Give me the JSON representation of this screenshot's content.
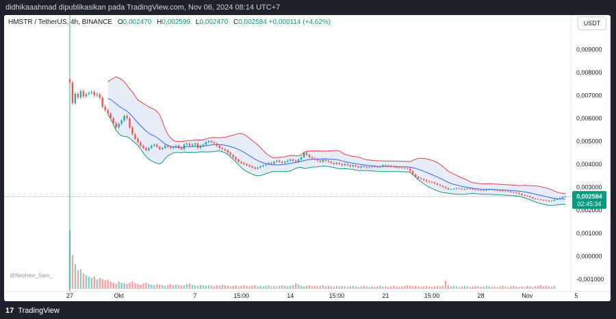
{
  "header": {
    "publish_line": "didhikaaahmad dipublikasikan pada TradingView.com, Nov 06, 2024 08:14 UTC+7"
  },
  "legend": {
    "symbol": "HMSTR / TetherUS, 4h, BINANCE",
    "open_label": "O",
    "open": "0,002470",
    "high_label": "H",
    "high": "0,002599",
    "low_label": "L",
    "low": "0,002470",
    "close_label": "C",
    "close": "0,002584",
    "change": "+0,000114 (+4,62%)"
  },
  "currency_button": "USDT",
  "watermark": "@Nephew_Sam_",
  "footer": {
    "logo_glyph": "17",
    "brand": "TradingView"
  },
  "colors": {
    "up": "#26a69a",
    "down": "#ef5350",
    "upper_band": "#f23645",
    "basis": "#2962ff",
    "lower_band": "#089981",
    "band_fill": "#dce6f7",
    "price_label": "#089981"
  },
  "chart_data": {
    "type": "candlestick",
    "timeframe": "4h",
    "y_range": [
      -0.0012,
      0.0096
    ],
    "y_ticks": [
      "0,009000",
      "0,008000",
      "0,007000",
      "0,006000",
      "0,005000",
      "0,004000",
      "0,003000",
      "0,002000",
      "0,001000",
      "0,000000",
      "-0,001000"
    ],
    "y_tick_values": [
      0.009,
      0.008,
      0.007,
      0.006,
      0.005,
      0.004,
      0.003,
      0.002,
      0.001,
      0,
      -0.001
    ],
    "x_ticks": [
      "27",
      "Okt",
      "7",
      "15:00",
      "14",
      "15:00",
      "21",
      "15:00",
      "28",
      "Nov",
      "5"
    ],
    "x_tick_bar_index": [
      0,
      18,
      46,
      63,
      81,
      98,
      116,
      133,
      151,
      168,
      186
    ],
    "last_price": "0,002584",
    "last_price_value": 0.002584,
    "countdown": "02:45:34",
    "bollinger_start_index": 14,
    "series": [
      {
        "name": "price",
        "values": [
          0.00755,
          0.00665,
          0.00706,
          0.0069,
          0.00718,
          0.00695,
          0.00705,
          0.0071,
          0.00715,
          0.007,
          0.00705,
          0.0069,
          0.0065,
          0.00635,
          0.0062,
          0.006,
          0.00578,
          0.0056,
          0.00575,
          0.0059,
          0.0061,
          0.006,
          0.0056,
          0.0053,
          0.0051,
          0.00495,
          0.0048,
          0.0047,
          0.0046,
          0.0047,
          0.0048,
          0.00485,
          0.00475,
          0.00465,
          0.0047,
          0.0048,
          0.00475,
          0.0047,
          0.00475,
          0.0048,
          0.0047,
          0.00465,
          0.00485,
          0.0049,
          0.0048,
          0.00485,
          0.0049,
          0.0047,
          0.0048,
          0.00485,
          0.00495,
          0.005,
          0.00495,
          0.0049,
          0.0048,
          0.0047,
          0.00465,
          0.0046,
          0.0045,
          0.0044,
          0.0043,
          0.0042,
          0.0041,
          0.00405,
          0.004,
          0.00395,
          0.0039,
          0.00385,
          0.0038,
          0.00385,
          0.0039,
          0.00395,
          0.004,
          0.00405,
          0.004,
          0.0041,
          0.00415,
          0.0041,
          0.00405,
          0.0041,
          0.00415,
          0.0042,
          0.00415,
          0.0041,
          0.0042,
          0.0043,
          0.0045,
          0.0044,
          0.0043,
          0.00425,
          0.0042,
          0.00415,
          0.0041,
          0.0042,
          0.00415,
          0.0041,
          0.00405,
          0.004,
          0.00405,
          0.004,
          0.00395,
          0.004,
          0.00395,
          0.0039,
          0.00395,
          0.0039,
          0.00385,
          0.0039,
          0.00388,
          0.00385,
          0.00387,
          0.0039,
          0.00388,
          0.00386,
          0.0039,
          0.00395,
          0.00393,
          0.00392,
          0.0039,
          0.00388,
          0.00386,
          0.00385,
          0.00384,
          0.00382,
          0.0038,
          0.0037,
          0.00355,
          0.00345,
          0.00338,
          0.00335,
          0.0033,
          0.00325,
          0.00322,
          0.0032,
          0.00315,
          0.0031,
          0.00305,
          0.003,
          0.00295,
          0.0029,
          0.0029,
          0.00292,
          0.00295,
          0.00293,
          0.0029,
          0.00292,
          0.00294,
          0.00292,
          0.0029,
          0.00288,
          0.00287,
          0.00286,
          0.00285,
          0.00287,
          0.0029,
          0.00288,
          0.00286,
          0.00285,
          0.00284,
          0.00283,
          0.00282,
          0.0028,
          0.00278,
          0.00276,
          0.00275,
          0.0027,
          0.00265,
          0.00262,
          0.0026,
          0.00255,
          0.0025,
          0.00248,
          0.00246,
          0.00244,
          0.00242,
          0.0024,
          0.00238,
          0.0024,
          0.00245,
          0.00248,
          0.00252,
          0.00258,
          0.002584
        ]
      },
      {
        "name": "volume",
        "values": [
          0.95,
          0.55,
          0.4,
          0.3,
          0.32,
          0.25,
          0.22,
          0.2,
          0.18,
          0.2,
          0.15,
          0.18,
          0.16,
          0.14,
          0.15,
          0.12,
          0.1,
          0.08,
          0.12,
          0.1,
          0.09,
          0.08,
          0.1,
          0.12,
          0.09,
          0.08,
          0.07,
          0.09,
          0.1,
          0.08,
          0.07,
          0.06,
          0.08,
          0.07,
          0.06,
          0.05,
          0.07,
          0.08,
          0.06,
          0.07,
          0.06,
          0.05,
          0.06,
          0.08,
          0.09,
          0.07,
          0.06,
          0.05,
          0.07,
          0.06,
          0.05,
          0.06,
          0.05,
          0.04,
          0.06,
          0.05,
          0.07,
          0.06,
          0.05,
          0.04,
          0.05,
          0.06,
          0.04,
          0.05,
          0.06,
          0.05,
          0.04,
          0.05,
          0.06,
          0.04,
          0.05,
          0.04,
          0.05,
          0.06,
          0.04,
          0.05,
          0.04,
          0.05,
          0.06,
          0.05,
          0.04,
          0.05,
          0.06,
          0.09,
          0.07,
          0.05,
          0.04,
          0.05,
          0.06,
          0.04,
          0.05,
          0.04,
          0.05,
          0.06,
          0.04,
          0.05,
          0.04,
          0.03,
          0.05,
          0.04,
          0.05,
          0.04,
          0.03,
          0.04,
          0.05,
          0.04,
          0.03,
          0.04,
          0.05,
          0.04,
          0.03,
          0.04,
          0.03,
          0.04,
          0.05,
          0.03,
          0.04,
          0.03,
          0.04,
          0.05,
          0.04,
          0.03,
          0.04,
          0.05,
          0.06,
          0.05,
          0.04,
          0.05,
          0.04,
          0.03,
          0.04,
          0.05,
          0.04,
          0.03,
          0.04,
          0.05,
          0.04,
          0.05,
          0.13,
          0.06,
          0.04,
          0.05,
          0.04,
          0.03,
          0.04,
          0.05,
          0.04,
          0.03,
          0.04,
          0.05,
          0.04,
          0.03,
          0.04,
          0.05,
          0.04,
          0.03,
          0.04,
          0.03,
          0.04,
          0.05,
          0.04,
          0.03,
          0.04,
          0.05,
          0.04,
          0.03,
          0.04,
          0.03,
          0.05,
          0.04,
          0.03,
          0.04,
          0.05,
          0.06,
          0.04,
          0.05,
          0.04,
          0.03,
          0.05
        ]
      }
    ]
  }
}
